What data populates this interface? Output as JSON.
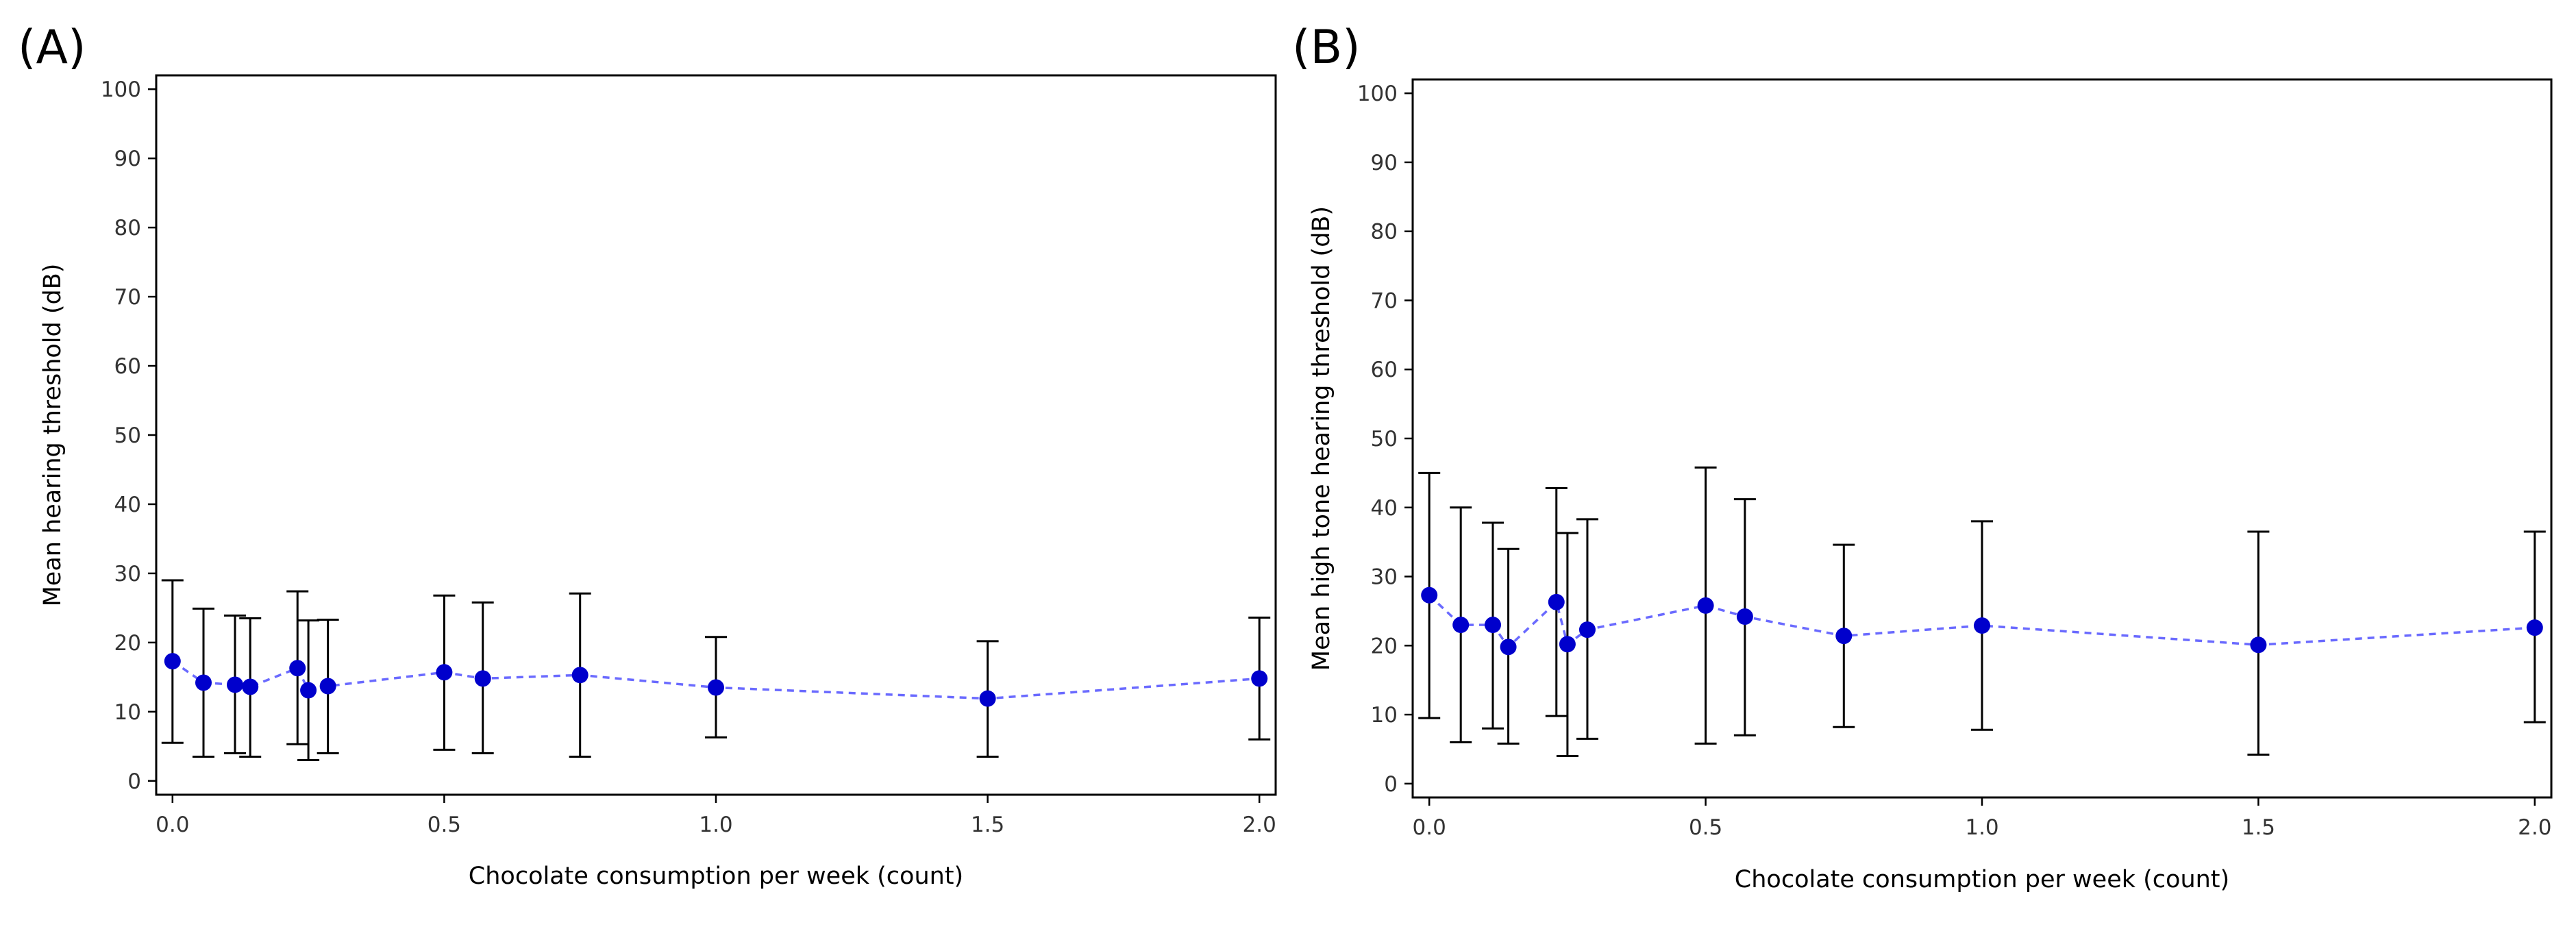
{
  "chart_data": [
    {
      "panel_label": "(A)",
      "type": "line",
      "xlabel": "Chocolate consumption per week (count)",
      "ylabel": "Mean hearing threshold (dB)",
      "xlim": [
        -0.03,
        2.03
      ],
      "ylim": [
        -2,
        102
      ],
      "xticks": [
        0.0,
        0.5,
        1.0,
        1.5,
        2.0
      ],
      "xtick_labels": [
        "0.0",
        "0.5",
        "1.0",
        "1.5",
        "2.0"
      ],
      "yticks": [
        0,
        10,
        20,
        30,
        40,
        50,
        60,
        70,
        80,
        90,
        100
      ],
      "ytick_labels": [
        "0",
        "10",
        "20",
        "30",
        "40",
        "50",
        "60",
        "70",
        "80",
        "90",
        "100"
      ],
      "line_color": "#6a6aff",
      "marker_color": "#0000cc",
      "points": [
        {
          "x": 0.0,
          "y": 17.3,
          "lo": 5.5,
          "hi": 29.0
        },
        {
          "x": 0.057,
          "y": 14.2,
          "lo": 3.5,
          "hi": 24.9
        },
        {
          "x": 0.115,
          "y": 13.9,
          "lo": 4.0,
          "hi": 23.9
        },
        {
          "x": 0.143,
          "y": 13.6,
          "lo": 3.5,
          "hi": 23.5
        },
        {
          "x": 0.23,
          "y": 16.3,
          "lo": 5.3,
          "hi": 27.4
        },
        {
          "x": 0.25,
          "y": 13.1,
          "lo": 3.0,
          "hi": 23.2
        },
        {
          "x": 0.286,
          "y": 13.7,
          "lo": 4.0,
          "hi": 23.3
        },
        {
          "x": 0.5,
          "y": 15.7,
          "lo": 4.5,
          "hi": 26.8
        },
        {
          "x": 0.571,
          "y": 14.8,
          "lo": 4.0,
          "hi": 25.8
        },
        {
          "x": 0.75,
          "y": 15.3,
          "lo": 3.5,
          "hi": 27.1
        },
        {
          "x": 1.0,
          "y": 13.5,
          "lo": 6.3,
          "hi": 20.8
        },
        {
          "x": 1.5,
          "y": 11.9,
          "lo": 3.5,
          "hi": 20.2
        },
        {
          "x": 2.0,
          "y": 14.8,
          "lo": 6.0,
          "hi": 23.6
        }
      ]
    },
    {
      "panel_label": "(B)",
      "type": "line",
      "xlabel": "Chocolate consumption per week (count)",
      "ylabel": "Mean high tone hearing threshold (dB)",
      "xlim": [
        -0.03,
        2.03
      ],
      "ylim": [
        -2,
        102
      ],
      "xticks": [
        0.0,
        0.5,
        1.0,
        1.5,
        2.0
      ],
      "xtick_labels": [
        "0.0",
        "0.5",
        "1.0",
        "1.5",
        "2.0"
      ],
      "yticks": [
        0,
        10,
        20,
        30,
        40,
        50,
        60,
        70,
        80,
        90,
        100
      ],
      "ytick_labels": [
        "0",
        "10",
        "20",
        "30",
        "40",
        "50",
        "60",
        "70",
        "80",
        "90",
        "100"
      ],
      "line_color": "#6a6aff",
      "marker_color": "#0000cc",
      "points": [
        {
          "x": 0.0,
          "y": 27.3,
          "lo": 9.5,
          "hi": 45.0
        },
        {
          "x": 0.057,
          "y": 23.0,
          "lo": 6.0,
          "hi": 40.0
        },
        {
          "x": 0.115,
          "y": 23.0,
          "lo": 8.0,
          "hi": 37.8
        },
        {
          "x": 0.143,
          "y": 19.8,
          "lo": 5.8,
          "hi": 34.0
        },
        {
          "x": 0.23,
          "y": 26.3,
          "lo": 9.8,
          "hi": 42.8
        },
        {
          "x": 0.25,
          "y": 20.2,
          "lo": 4.0,
          "hi": 36.3
        },
        {
          "x": 0.286,
          "y": 22.3,
          "lo": 6.5,
          "hi": 38.3
        },
        {
          "x": 0.5,
          "y": 25.8,
          "lo": 5.8,
          "hi": 45.8
        },
        {
          "x": 0.571,
          "y": 24.2,
          "lo": 7.0,
          "hi": 41.2
        },
        {
          "x": 0.75,
          "y": 21.4,
          "lo": 8.2,
          "hi": 34.6
        },
        {
          "x": 1.0,
          "y": 22.9,
          "lo": 7.8,
          "hi": 38.0
        },
        {
          "x": 1.5,
          "y": 20.1,
          "lo": 4.2,
          "hi": 36.5
        },
        {
          "x": 2.0,
          "y": 22.6,
          "lo": 8.9,
          "hi": 36.5
        }
      ]
    }
  ]
}
